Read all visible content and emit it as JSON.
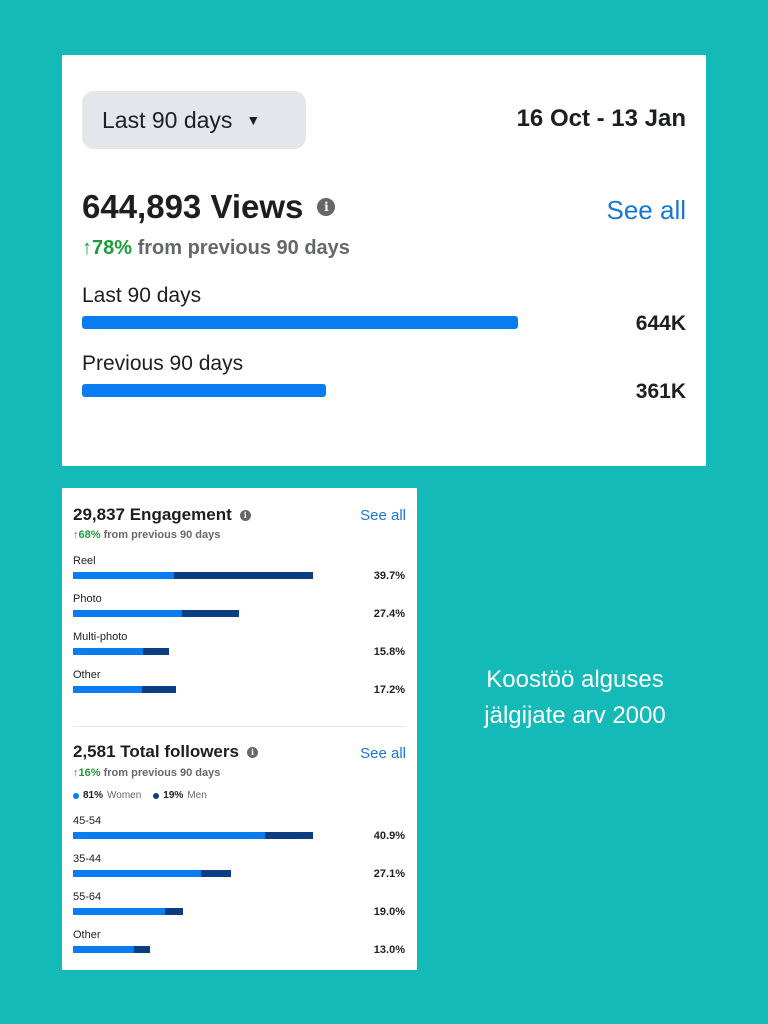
{
  "views": {
    "range_label": "Last 90 days",
    "date_range": "16 Oct - 13 Jan",
    "title": "644,893 Views",
    "info_icon": "info-icon",
    "see_all": "See all",
    "change_pct": "↑78%",
    "change_text": "from previous 90 days",
    "rows": [
      {
        "label": "Last 90 days",
        "value": "644K",
        "fraction": 1.0
      },
      {
        "label": "Previous 90 days",
        "value": "361K",
        "fraction": 0.56
      }
    ]
  },
  "engagement": {
    "title": "29,837 Engagement",
    "see_all": "See all",
    "change_pct": "↑68%",
    "change_text": "from previous 90 days",
    "rows": [
      {
        "label": "Reel",
        "value": "39.7%",
        "fraction": 1.0,
        "primary_fraction": 0.42
      },
      {
        "label": "Photo",
        "value": "27.4%",
        "fraction": 0.69,
        "primary_fraction": 0.66
      },
      {
        "label": "Multi-photo",
        "value": "15.8%",
        "fraction": 0.4,
        "primary_fraction": 0.73
      },
      {
        "label": "Other",
        "value": "17.2%",
        "fraction": 0.43,
        "primary_fraction": 0.67
      }
    ]
  },
  "followers": {
    "title": "2,581 Total followers",
    "see_all": "See all",
    "change_pct": "↑16%",
    "change_text": "from previous 90 days",
    "legend": [
      {
        "pct": "81%",
        "label": "Women",
        "color": "#0a7cf2"
      },
      {
        "pct": "19%",
        "label": "Men",
        "color": "#0c3d80"
      }
    ],
    "rows": [
      {
        "label": "45-54",
        "value": "40.9%",
        "fraction": 1.0,
        "primary_fraction": 0.8
      },
      {
        "label": "35-44",
        "value": "27.1%",
        "fraction": 0.66,
        "primary_fraction": 0.81
      },
      {
        "label": "55-64",
        "value": "19.0%",
        "fraction": 0.46,
        "primary_fraction": 0.83
      },
      {
        "label": "Other",
        "value": "13.0%",
        "fraction": 0.32,
        "primary_fraction": 0.79
      }
    ]
  },
  "caption": {
    "line1": "Koostöö alguses",
    "line2": "jälgijate arv 2000"
  },
  "colors": {
    "background": "#13bab8",
    "bar_primary": "#0a7cf2",
    "bar_secondary": "#0c3d80",
    "link": "#1877d2",
    "positive": "#1e9e3a"
  }
}
